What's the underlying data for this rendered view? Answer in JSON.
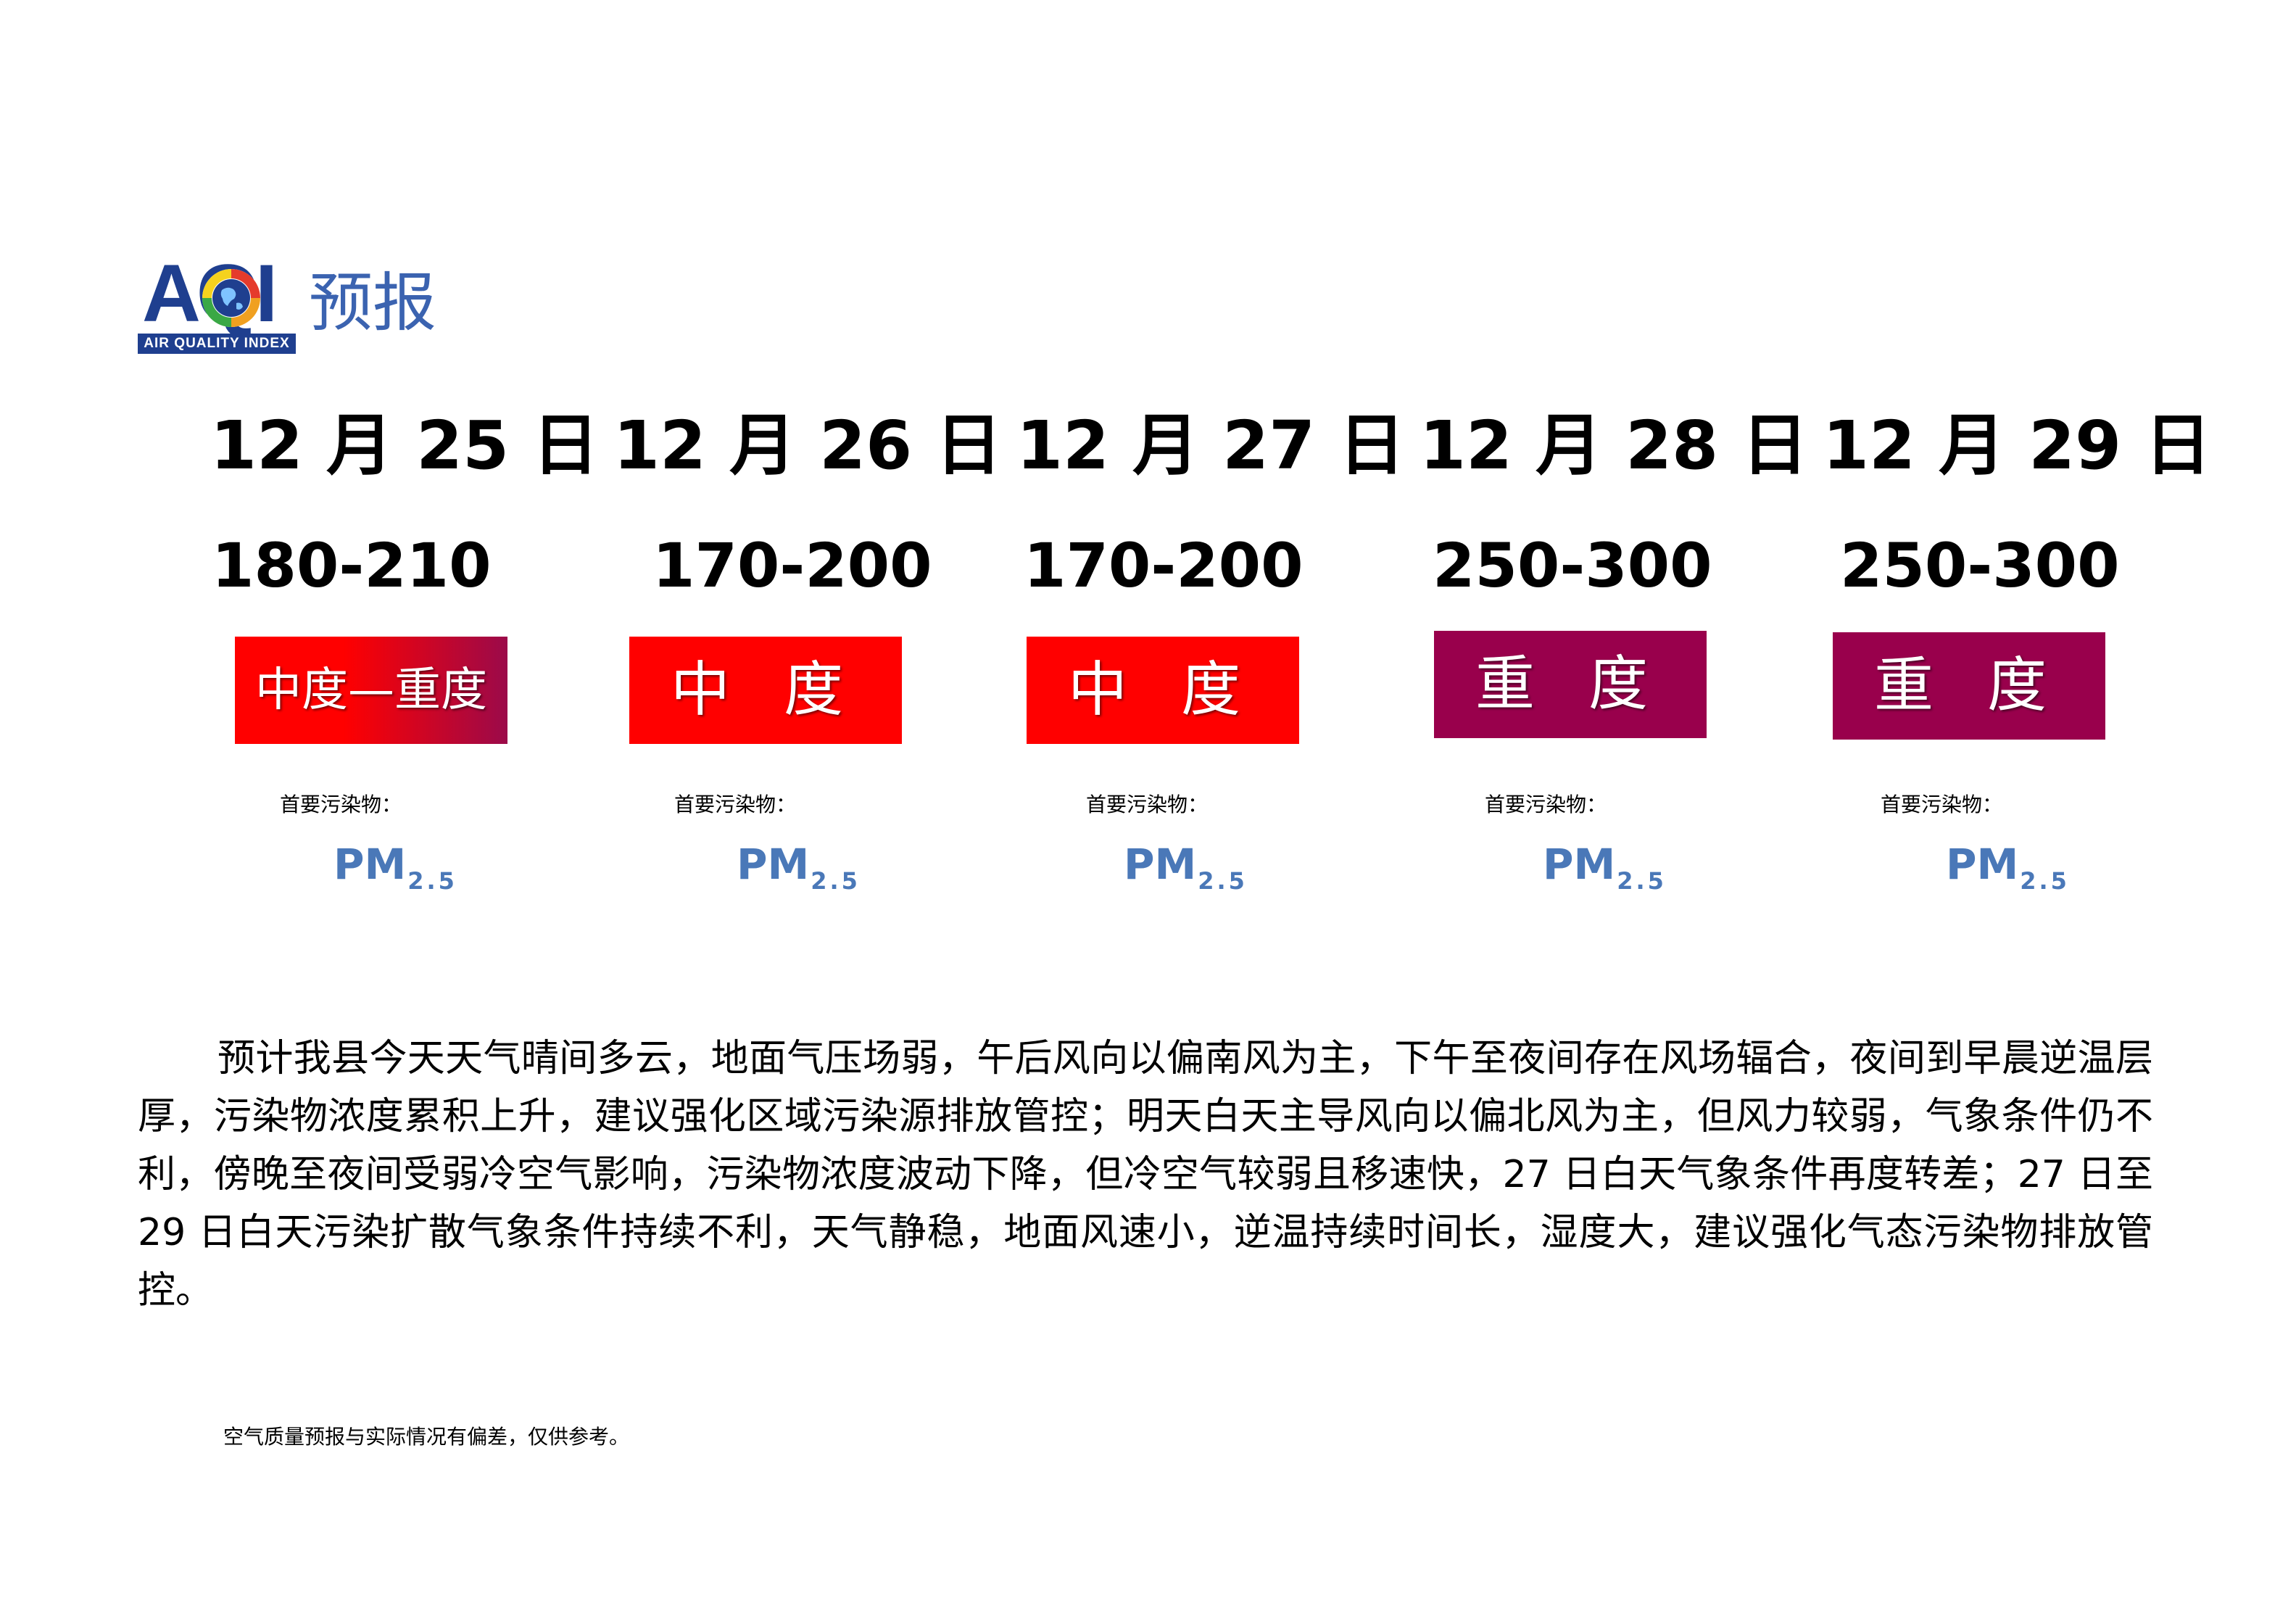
{
  "logo": {
    "letters": "AQI",
    "strip_text": "AIR QUALITY INDEX",
    "title": "预报",
    "brand_color": "#1f3f8f",
    "icon": "globe-icon"
  },
  "forecast": {
    "pollutant_label": "首要污染物：",
    "days": [
      {
        "date": "12 月 25 日",
        "aqi_range": "180-210",
        "level": "中度—重度",
        "color": "#ff0000",
        "color_to": "#9b0a4a",
        "pollutant": "PM",
        "pollutant_sub": "2.5"
      },
      {
        "date": "12 月 26 日",
        "aqi_range": "170-200",
        "level": "中 度",
        "color": "#ff0000",
        "pollutant": "PM",
        "pollutant_sub": "2.5"
      },
      {
        "date": "12 月 27 日",
        "aqi_range": "170-200",
        "level": "中 度",
        "color": "#ff0000",
        "pollutant": "PM",
        "pollutant_sub": "2.5"
      },
      {
        "date": "12 月 28 日",
        "aqi_range": "250-300",
        "level": "重 度",
        "color": "#99004c",
        "pollutant": "PM",
        "pollutant_sub": "2.5"
      },
      {
        "date": "12 月 29 日",
        "aqi_range": "250-300",
        "level": "重 度",
        "color": "#99004c",
        "pollutant": "PM",
        "pollutant_sub": "2.5"
      }
    ]
  },
  "description": "预计我县今天天气晴间多云，地面气压场弱，午后风向以偏南风为主，下午至夜间存在风场辐合，夜间到早晨逆温层厚，污染物浓度累积上升，建议强化区域污染源排放管控；明天白天主导风向以偏北风为主，但风力较弱，气象条件仍不利，傍晚至夜间受弱冷空气影响，污染物浓度波动下降，但冷空气较弱且移速快，27 日白天气象条件再度转差；27 日至 29 日白天污染扩散气象条件持续不利，天气静稳，地面风速小，逆温持续时间长，湿度大，建议强化气态污染物排放管控。",
  "disclaimer": "空气质量预报与实际情况有偏差，仅供参考。"
}
